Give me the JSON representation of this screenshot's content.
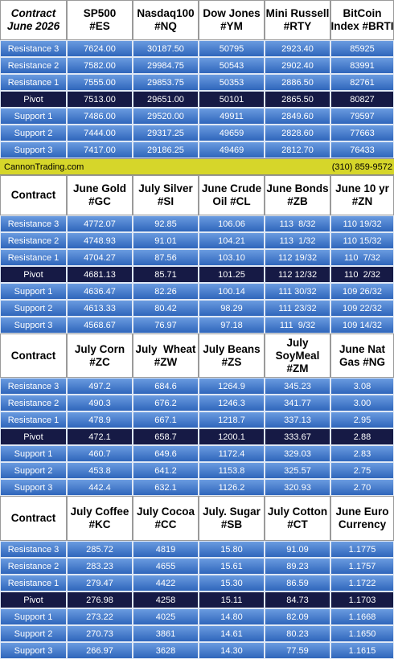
{
  "sections": [
    {
      "header": [
        [
          "Contract",
          "June 2026"
        ],
        [
          "SP500",
          "#ES"
        ],
        [
          "Nasdaq100",
          "#NQ"
        ],
        [
          "Dow Jones",
          "#YM"
        ],
        [
          "Mini Russell",
          "#RTY"
        ],
        [
          "BitCoin",
          "Index #BRTI"
        ]
      ],
      "rows": [
        [
          "Resistance 3",
          "7624.00",
          "30187.50",
          "50795",
          "2923.40",
          "85925"
        ],
        [
          "Resistance 2",
          "7582.00",
          "29984.75",
          "50543",
          "2902.40",
          "83991"
        ],
        [
          "Resistance 1",
          "7555.00",
          "29853.75",
          "50353",
          "2886.50",
          "82761"
        ],
        [
          "Pivot",
          "7513.00",
          "29651.00",
          "50101",
          "2865.50",
          "80827"
        ],
        [
          "Support 1",
          "7486.00",
          "29520.00",
          "49911",
          "2849.60",
          "79597"
        ],
        [
          "Support 2",
          "7444.00",
          "29317.25",
          "49659",
          "2828.60",
          "77663"
        ],
        [
          "Support 3",
          "7417.00",
          "29186.25",
          "49469",
          "2812.70",
          "76433"
        ]
      ]
    },
    {
      "header": [
        [
          "Contract"
        ],
        [
          "June Gold",
          "#GC"
        ],
        [
          "July Silver",
          "#SI"
        ],
        [
          "June Crude",
          "Oil #CL"
        ],
        [
          "June Bonds",
          "#ZB"
        ],
        [
          "June 10 yr",
          "#ZN"
        ]
      ],
      "rows": [
        [
          "Resistance 3",
          "4772.07",
          "92.85",
          "106.06",
          "113  8/32",
          "110 19/32"
        ],
        [
          "Resistance 2",
          "4748.93",
          "91.01",
          "104.21",
          "113  1/32",
          "110 15/32"
        ],
        [
          "Resistance 1",
          "4704.27",
          "87.56",
          "103.10",
          "112 19/32",
          "110  7/32"
        ],
        [
          "Pivot",
          "4681.13",
          "85.71",
          "101.25",
          "112 12/32",
          "110  2/32"
        ],
        [
          "Support 1",
          "4636.47",
          "82.26",
          "100.14",
          "111 30/32",
          "109 26/32"
        ],
        [
          "Support 2",
          "4613.33",
          "80.42",
          "98.29",
          "111 23/32",
          "109 22/32"
        ],
        [
          "Support 3",
          "4568.67",
          "76.97",
          "97.18",
          "111  9/32",
          "109 14/32"
        ]
      ]
    },
    {
      "header": [
        [
          "Contract"
        ],
        [
          "July Corn",
          "#ZC"
        ],
        [
          "July  Wheat",
          "#ZW"
        ],
        [
          "July Beans",
          "#ZS"
        ],
        [
          "July",
          "SoyMeal",
          "#ZM"
        ],
        [
          "June Nat",
          "Gas #NG"
        ]
      ],
      "rows": [
        [
          "Resistance 3",
          "497.2",
          "684.6",
          "1264.9",
          "345.23",
          "3.08"
        ],
        [
          "Resistance 2",
          "490.3",
          "676.2",
          "1246.3",
          "341.77",
          "3.00"
        ],
        [
          "Resistance 1",
          "478.9",
          "667.1",
          "1218.7",
          "337.13",
          "2.95"
        ],
        [
          "Pivot",
          "472.1",
          "658.7",
          "1200.1",
          "333.67",
          "2.88"
        ],
        [
          "Support 1",
          "460.7",
          "649.6",
          "1172.4",
          "329.03",
          "2.83"
        ],
        [
          "Support 2",
          "453.8",
          "641.2",
          "1153.8",
          "325.57",
          "2.75"
        ],
        [
          "Support 3",
          "442.4",
          "632.1",
          "1126.2",
          "320.93",
          "2.70"
        ]
      ]
    },
    {
      "header": [
        [
          "Contract"
        ],
        [
          "July Coffee",
          "#KC"
        ],
        [
          "July Cocoa",
          "#CC"
        ],
        [
          "July. Sugar",
          "#SB"
        ],
        [
          "July Cotton",
          "#CT"
        ],
        [
          "June Euro",
          "Currency"
        ]
      ],
      "rows": [
        [
          "Resistance 3",
          "285.72",
          "4819",
          "15.80",
          "91.09",
          "1.1775"
        ],
        [
          "Resistance 2",
          "283.23",
          "4655",
          "15.61",
          "89.23",
          "1.1757"
        ],
        [
          "Resistance 1",
          "279.47",
          "4422",
          "15.30",
          "86.59",
          "1.1722"
        ],
        [
          "Pivot",
          "276.98",
          "4258",
          "15.11",
          "84.73",
          "1.1703"
        ],
        [
          "Support 1",
          "273.22",
          "4025",
          "14.80",
          "82.09",
          "1.1668"
        ],
        [
          "Support 2",
          "270.73",
          "3861",
          "14.61",
          "80.23",
          "1.1650"
        ],
        [
          "Support 3",
          "266.97",
          "3628",
          "14.30",
          "77.59",
          "1.1615"
        ]
      ]
    }
  ],
  "banner": {
    "left": "CannonTrading.com",
    "right": "(310) 859-9572"
  }
}
